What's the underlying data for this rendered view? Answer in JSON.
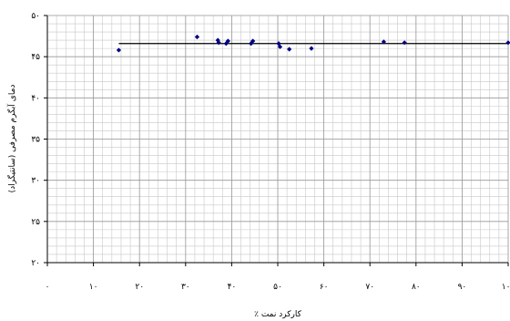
{
  "chart_data": {
    "type": "scatter",
    "title": "",
    "xlabel": "کارکرد نمت ٪",
    "ylabel": "دمای آبگرم مصرفی (سانتیگراد)",
    "xlim": [
      0,
      100
    ],
    "ylim": [
      20,
      50
    ],
    "x_ticks": [
      "۰",
      "۱۰",
      "۲۰",
      "۳۰",
      "۴۰",
      "۵۰",
      "۶۰",
      "۷۰",
      "۸۰",
      "۹۰",
      "۱۰۰"
    ],
    "y_ticks": [
      "۲۰",
      "۲۵",
      "۳۰",
      "۳۵",
      "۴۰",
      "۴۵",
      "۵۰"
    ],
    "x_tick_values": [
      0,
      10,
      20,
      30,
      40,
      50,
      60,
      70,
      80,
      90,
      100
    ],
    "y_tick_values": [
      20,
      25,
      30,
      35,
      40,
      45,
      50
    ],
    "grid": true,
    "series": [
      {
        "type": "scatter",
        "color": "#00007f",
        "points": [
          [
            15.5,
            45.8
          ],
          [
            32.5,
            47.4
          ],
          [
            37.0,
            47.0
          ],
          [
            37.2,
            46.7
          ],
          [
            38.8,
            46.6
          ],
          [
            39.2,
            46.9
          ],
          [
            44.2,
            46.6
          ],
          [
            44.6,
            46.9
          ],
          [
            50.2,
            46.6
          ],
          [
            50.5,
            46.2
          ],
          [
            52.5,
            45.9
          ],
          [
            57.3,
            46.0
          ],
          [
            73.0,
            46.8
          ],
          [
            77.5,
            46.7
          ],
          [
            100.0,
            46.7
          ]
        ]
      },
      {
        "type": "line",
        "color": "#000000",
        "points": [
          [
            15.5,
            46.6
          ],
          [
            100.0,
            46.6
          ]
        ]
      }
    ]
  }
}
